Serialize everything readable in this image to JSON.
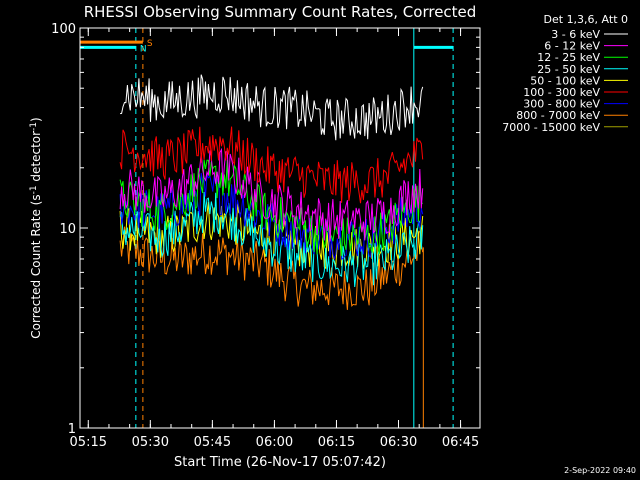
{
  "chart_data": {
    "type": "line",
    "title": "RHESSI Observing Summary Count Rates, Corrected",
    "xlabel": "Start Time (26-Nov-17 05:07:42)",
    "ylabel_main": "Corrected Count Rate (s",
    "ylabel_sup1": "-1",
    "ylabel_mid": " detector",
    "ylabel_sup2": "-1",
    "ylabel_end": ")",
    "yscale": "log",
    "ylim": [
      1,
      100
    ],
    "xlim_minutes": [
      5.3,
      102.0
    ],
    "x_ticks": [
      {
        "label": "05:15",
        "minute": 7.3
      },
      {
        "label": "05:30",
        "minute": 22.3
      },
      {
        "label": "05:45",
        "minute": 37.3
      },
      {
        "label": "06:00",
        "minute": 52.3
      },
      {
        "label": "06:15",
        "minute": 67.3
      },
      {
        "label": "06:30",
        "minute": 82.3
      },
      {
        "label": "06:45",
        "minute": 97.3
      }
    ],
    "y_ticks": [
      {
        "label": "1",
        "value": 1
      },
      {
        "label": "10",
        "value": 10
      },
      {
        "label": "100",
        "value": 100
      }
    ],
    "legend_title": "Det 1,3,6, Att 0",
    "legend_position": "top-right",
    "time_knots": [
      15,
      20,
      25,
      30,
      35,
      40,
      45,
      50,
      55,
      60,
      65,
      70,
      75,
      80,
      85,
      88.3
    ],
    "series": [
      {
        "name": "3 - 6 keV",
        "color": "#ffffff",
        "values": [
          48,
          45,
          42,
          44,
          46,
          48,
          44,
          40,
          40,
          38,
          35,
          35,
          35,
          37,
          42,
          43
        ]
      },
      {
        "name": "6 - 12 keV",
        "color": "#ff00ff",
        "values": [
          16,
          15,
          14,
          16,
          19,
          20,
          17,
          14,
          13,
          12,
          11,
          11,
          11,
          12,
          15,
          16
        ]
      },
      {
        "name": "12 - 25 keV",
        "color": "#00ff00",
        "values": [
          14,
          13,
          12,
          14,
          17,
          18,
          15,
          12,
          11,
          10,
          9,
          9,
          9,
          10,
          13,
          14
        ]
      },
      {
        "name": "25 - 50 keV",
        "color": "#00ffff",
        "values": [
          10,
          9.5,
          9,
          10,
          12,
          12,
          10,
          8.5,
          7.5,
          7,
          6.5,
          6.5,
          6.5,
          7,
          8,
          9
        ]
      },
      {
        "name": "50 - 100 keV",
        "color": "#ffff00",
        "values": [
          10,
          9.5,
          9,
          9.5,
          11,
          11,
          10,
          9,
          8.5,
          8,
          8,
          8,
          8,
          8.5,
          9,
          9.5
        ]
      },
      {
        "name": "100 - 300 keV",
        "color": "#ff0000",
        "values": [
          25,
          24,
          22,
          23,
          26,
          27,
          23,
          20,
          19,
          18,
          17,
          17,
          17,
          18,
          22,
          24
        ]
      },
      {
        "name": "300 - 800 keV",
        "color": "#0000ff",
        "values": [
          13,
          12.5,
          12,
          13,
          15,
          15,
          13,
          11,
          10,
          9.5,
          9,
          9,
          9,
          10,
          12,
          13
        ]
      },
      {
        "name": "800 - 7000 keV",
        "color": "#ff8000",
        "values": [
          8,
          7.5,
          7,
          7,
          7.5,
          7.5,
          7,
          6.5,
          5.5,
          5,
          5,
          5,
          5,
          6,
          7,
          8
        ]
      },
      {
        "name": "7000 - 15000 keV",
        "color": "#a0a000",
        "values": []
      }
    ],
    "flags": [
      {
        "label": "S",
        "color": "#ff8000",
        "start_minute": 5.3,
        "end_minute": 20.5,
        "level": 85
      },
      {
        "label": "N",
        "color": "#00ffff",
        "start_minute": 5.3,
        "end_minute": 18.8,
        "level": 80
      },
      {
        "label": "",
        "color": "#00ffff",
        "start_minute": 86.0,
        "end_minute": 95.5,
        "level": 80
      }
    ],
    "vlines": [
      {
        "minute": 5.3,
        "color": "#00ffff",
        "dashed": false
      },
      {
        "minute": 18.8,
        "color": "#00ffff",
        "dashed": true
      },
      {
        "minute": 20.5,
        "color": "#ff8000",
        "dashed": true
      },
      {
        "minute": 86.0,
        "color": "#00ffff",
        "dashed": false
      },
      {
        "minute": 95.5,
        "color": "#00ffff",
        "dashed": true
      }
    ],
    "data_start_minute": 15,
    "data_end_minute": 88.3,
    "drop_minute": 88.3,
    "grid": false
  },
  "footer": {
    "timestamp": "2-Sep-2022 09:40"
  }
}
